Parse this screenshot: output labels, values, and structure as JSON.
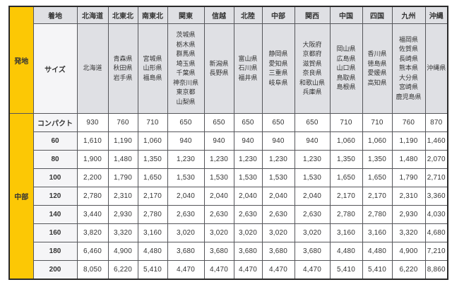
{
  "table": {
    "origin_header": "発地",
    "destination_header": "着地",
    "size_header": "サイズ",
    "origin_region": "中部",
    "columns": [
      {
        "region": "北海道",
        "prefectures": [
          "北海道"
        ]
      },
      {
        "region": "北東北",
        "prefectures": [
          "青森県",
          "秋田県",
          "岩手県"
        ]
      },
      {
        "region": "南東北",
        "prefectures": [
          "宮城県",
          "山形県",
          "福島県"
        ]
      },
      {
        "region": "関東",
        "prefectures": [
          "茨城県",
          "栃木県",
          "群馬県",
          "埼玉県",
          "千葉県",
          "神奈川県",
          "東京都",
          "山梨県"
        ]
      },
      {
        "region": "信越",
        "prefectures": [
          "新潟県",
          "長野県"
        ]
      },
      {
        "region": "北陸",
        "prefectures": [
          "富山県",
          "石川県",
          "福井県"
        ]
      },
      {
        "region": "中部",
        "prefectures": [
          "静岡県",
          "愛知県",
          "三重県",
          "岐阜県"
        ]
      },
      {
        "region": "関西",
        "prefectures": [
          "大阪府",
          "京都府",
          "滋賀県",
          "奈良県",
          "和歌山県",
          "兵庫県"
        ]
      },
      {
        "region": "中国",
        "prefectures": [
          "岡山県",
          "広島県",
          "山口県",
          "鳥取県",
          "島根県"
        ]
      },
      {
        "region": "四国",
        "prefectures": [
          "香川県",
          "徳島県",
          "愛媛県",
          "高知県"
        ]
      },
      {
        "region": "九州",
        "prefectures": [
          "福岡県",
          "佐賀県",
          "長崎県",
          "熊本県",
          "大分県",
          "宮崎県",
          "鹿児島県"
        ]
      },
      {
        "region": "沖縄",
        "prefectures": [
          "沖縄県"
        ]
      }
    ],
    "rows": [
      {
        "size": "コンパクト",
        "values": [
          "930",
          "760",
          "710",
          "650",
          "650",
          "650",
          "650",
          "650",
          "710",
          "710",
          "760",
          "870"
        ]
      },
      {
        "size": "60",
        "values": [
          "1,610",
          "1,190",
          "1,060",
          "940",
          "940",
          "940",
          "940",
          "940",
          "1,060",
          "1,060",
          "1,190",
          "1,460"
        ]
      },
      {
        "size": "80",
        "values": [
          "1,900",
          "1,480",
          "1,350",
          "1,230",
          "1,230",
          "1,230",
          "1,230",
          "1,230",
          "1,350",
          "1,350",
          "1,480",
          "2,070"
        ]
      },
      {
        "size": "100",
        "values": [
          "2,200",
          "1,790",
          "1,650",
          "1,530",
          "1,530",
          "1,530",
          "1,530",
          "1,530",
          "1,650",
          "1,650",
          "1,790",
          "2,710"
        ]
      },
      {
        "size": "120",
        "values": [
          "2,780",
          "2,310",
          "2,170",
          "2,040",
          "2,040",
          "2,040",
          "2,040",
          "2,040",
          "2,170",
          "2,170",
          "2,310",
          "3,360"
        ]
      },
      {
        "size": "140",
        "values": [
          "3,440",
          "2,930",
          "2,780",
          "2,630",
          "2,630",
          "2,630",
          "2,630",
          "2,630",
          "2,780",
          "2,780",
          "2,930",
          "4,030"
        ]
      },
      {
        "size": "160",
        "values": [
          "3,820",
          "3,320",
          "3,160",
          "3,020",
          "3,020",
          "3,020",
          "3,020",
          "3,020",
          "3,160",
          "3,160",
          "3,320",
          "4,680"
        ]
      },
      {
        "size": "180",
        "values": [
          "6,460",
          "4,900",
          "4,480",
          "3,680",
          "3,680",
          "3,680",
          "3,680",
          "3,680",
          "4,480",
          "4,480",
          "4,900",
          "7,210"
        ]
      },
      {
        "size": "200",
        "values": [
          "8,050",
          "6,220",
          "5,410",
          "4,470",
          "4,470",
          "4,470",
          "4,470",
          "4,470",
          "5,410",
          "5,410",
          "6,220",
          "8,860"
        ]
      }
    ],
    "colors": {
      "origin_yellow": "#FCC805",
      "header_gray": "#DFE0E4",
      "size_column": "#F5F5F7",
      "border": "#55565A",
      "text": "#333333"
    }
  }
}
